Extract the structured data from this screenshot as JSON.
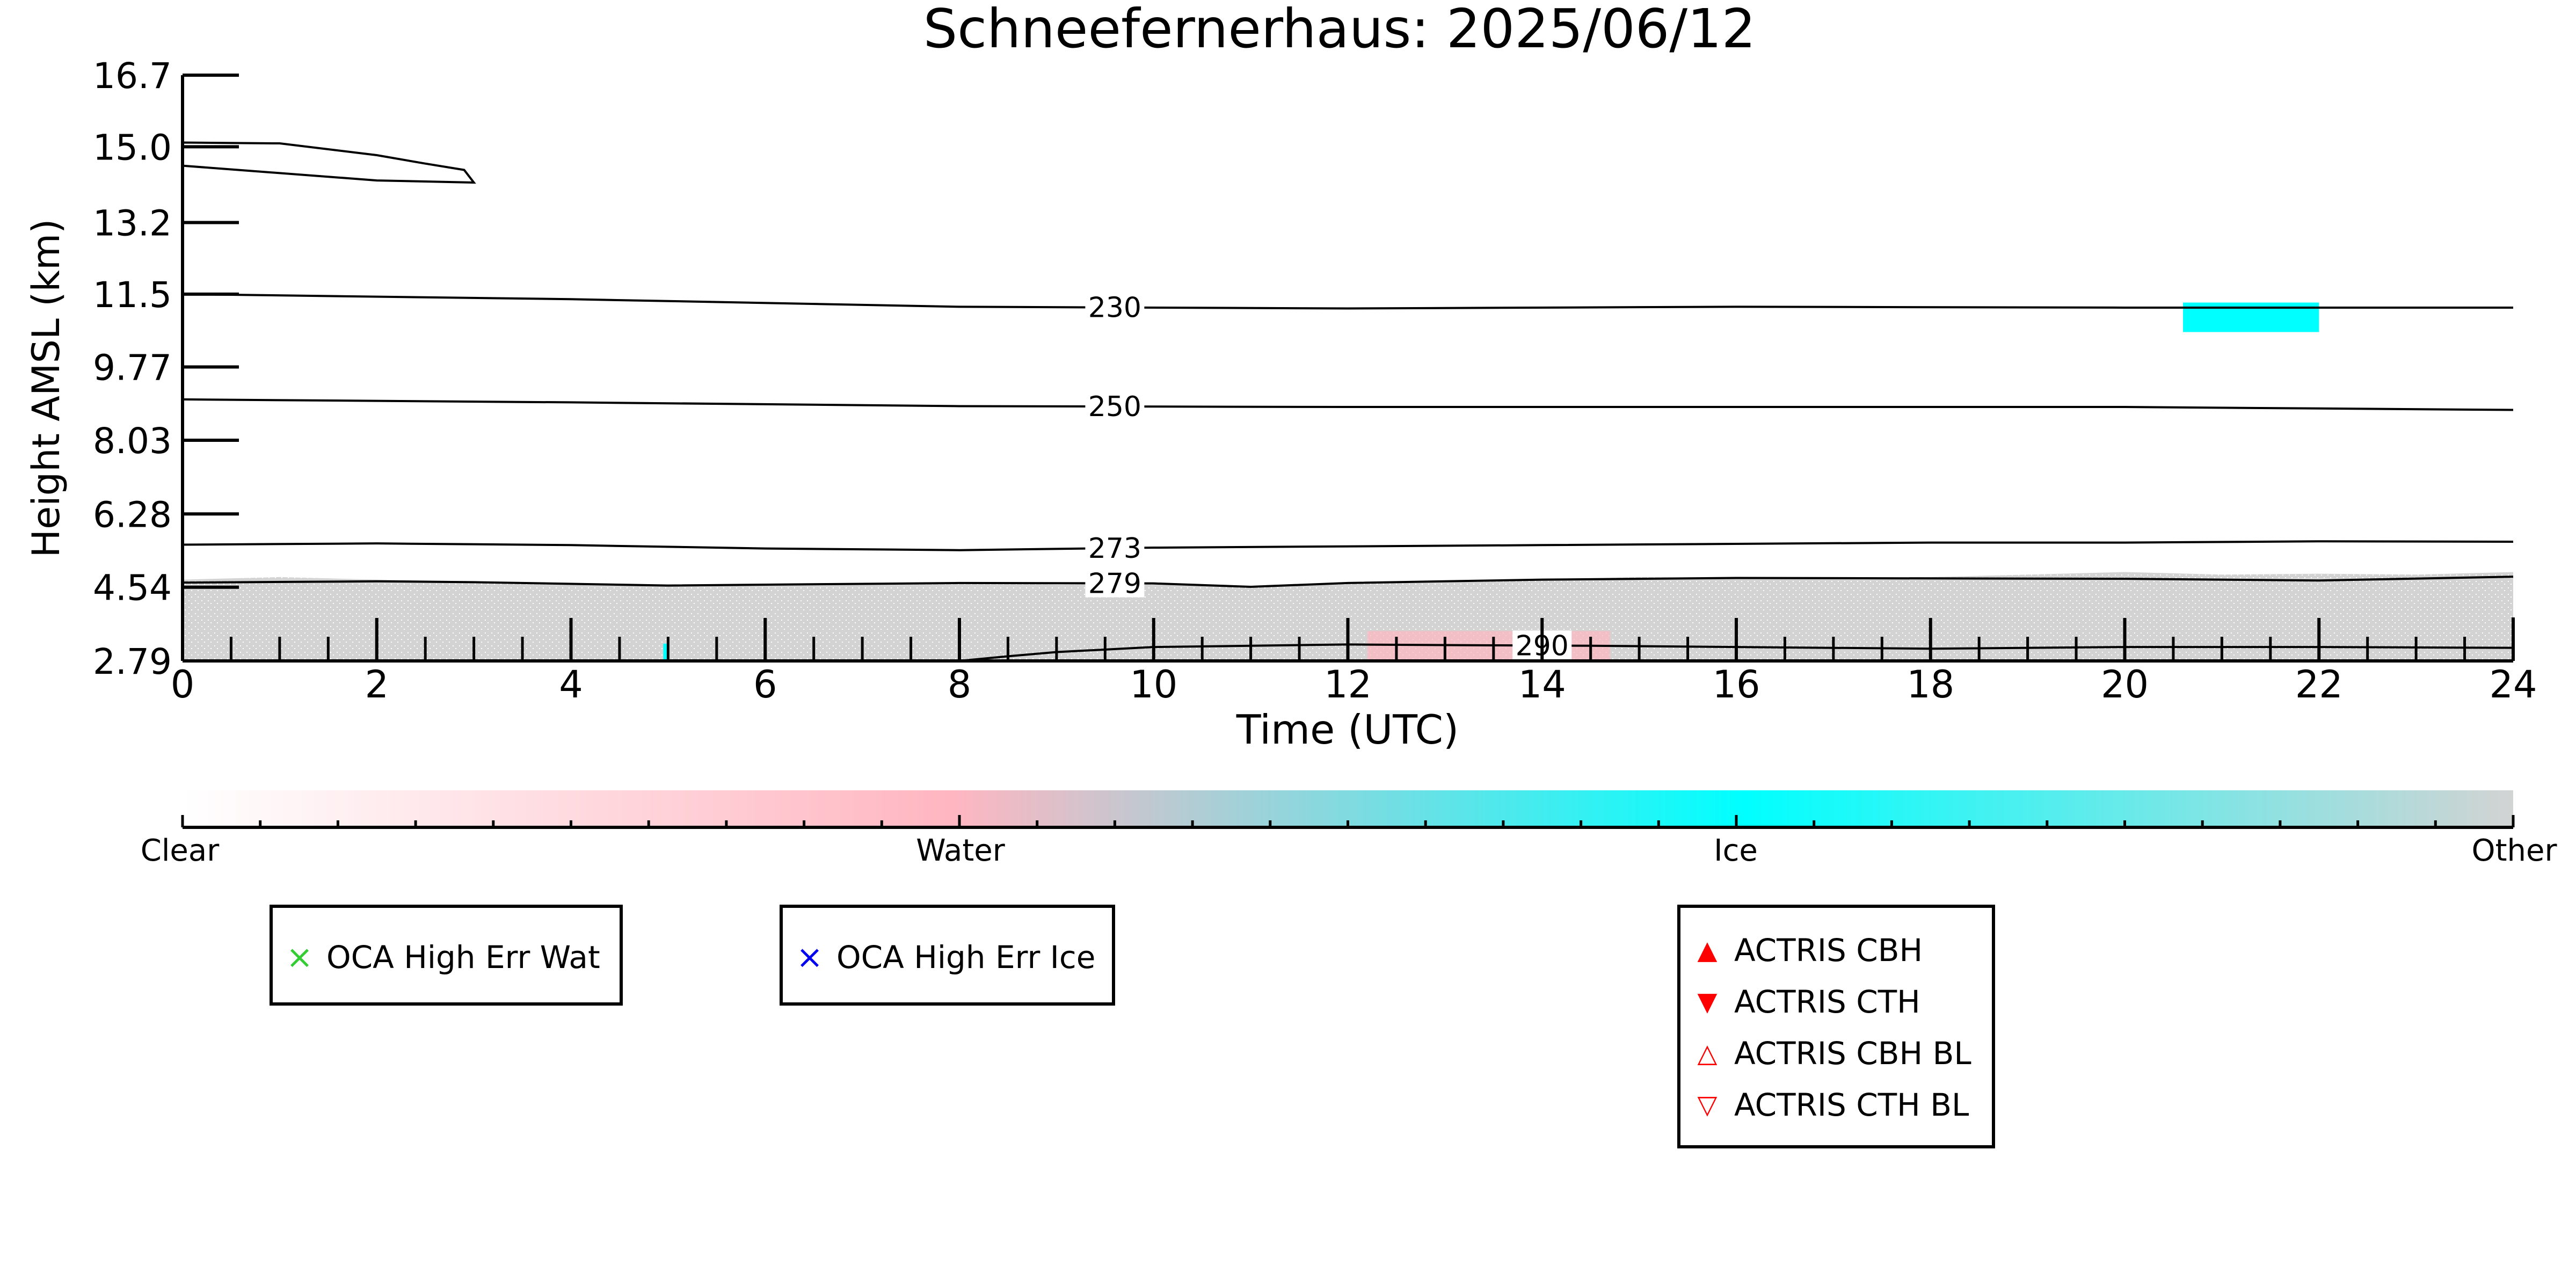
{
  "chart_data": {
    "type": "heatmap",
    "title": "Schneefernerhaus: 2025/06/12",
    "xlabel": "Time (UTC)",
    "ylabel": "Height AMSL (km)",
    "xlim": [
      0,
      24
    ],
    "ylim": [
      2.79,
      16.7
    ],
    "x_ticks": [
      "0",
      "2",
      "4",
      "6",
      "8",
      "10",
      "12",
      "14",
      "16",
      "18",
      "20",
      "22",
      "24"
    ],
    "y_ticks": [
      "2.79",
      "4.54",
      "6.28",
      "8.03",
      "9.77",
      "11.5",
      "13.2",
      "15.0",
      "16.7"
    ],
    "y_tick_values": [
      2.79,
      4.54,
      6.28,
      8.03,
      9.77,
      11.5,
      13.2,
      15.0,
      16.7
    ],
    "contours": [
      {
        "label": "230",
        "label_x": 9.6,
        "points": [
          [
            0,
            11.5
          ],
          [
            4,
            11.38
          ],
          [
            8,
            11.2
          ],
          [
            12,
            11.16
          ],
          [
            16,
            11.2
          ],
          [
            20,
            11.18
          ],
          [
            24,
            11.18
          ]
        ]
      },
      {
        "label": "250",
        "label_x": 9.6,
        "points": [
          [
            0,
            9.0
          ],
          [
            4,
            8.93
          ],
          [
            8,
            8.84
          ],
          [
            12,
            8.82
          ],
          [
            16,
            8.82
          ],
          [
            20,
            8.82
          ],
          [
            24,
            8.75
          ]
        ]
      },
      {
        "label": "273",
        "label_x": 9.6,
        "points": [
          [
            0,
            5.55
          ],
          [
            2,
            5.58
          ],
          [
            4,
            5.54
          ],
          [
            6,
            5.46
          ],
          [
            8,
            5.42
          ],
          [
            10,
            5.48
          ],
          [
            14,
            5.54
          ],
          [
            18,
            5.6
          ],
          [
            20,
            5.6
          ],
          [
            22,
            5.63
          ],
          [
            24,
            5.62
          ]
        ]
      },
      {
        "label": "279",
        "label_x": 9.6,
        "points": [
          [
            0,
            4.65
          ],
          [
            2,
            4.68
          ],
          [
            3,
            4.66
          ],
          [
            5,
            4.58
          ],
          [
            8,
            4.64
          ],
          [
            10,
            4.63
          ],
          [
            11,
            4.55
          ],
          [
            12,
            4.64
          ],
          [
            14,
            4.72
          ],
          [
            16,
            4.76
          ],
          [
            20,
            4.74
          ],
          [
            22,
            4.7
          ],
          [
            24,
            4.79
          ]
        ]
      },
      {
        "label": "290",
        "label_x": 14.0,
        "points": [
          [
            8,
            2.79
          ],
          [
            8.5,
            2.9
          ],
          [
            9,
            3.0
          ],
          [
            10,
            3.12
          ],
          [
            12,
            3.18
          ],
          [
            13.5,
            3.16
          ],
          [
            14.5,
            3.15
          ],
          [
            16,
            3.12
          ],
          [
            18,
            3.08
          ],
          [
            20,
            3.12
          ],
          [
            22,
            3.12
          ],
          [
            24,
            3.1
          ]
        ]
      },
      {
        "label": "",
        "label_x": null,
        "points": [
          [
            0,
            15.1
          ],
          [
            1,
            15.08
          ],
          [
            2,
            14.8
          ],
          [
            2.5,
            14.6
          ],
          [
            2.9,
            14.45
          ],
          [
            3.0,
            14.15
          ],
          [
            2,
            14.2
          ],
          [
            0,
            14.55
          ]
        ]
      }
    ],
    "categories_legend": [
      "Clear",
      "Water",
      "Ice",
      "Other"
    ],
    "colors": {
      "clear": "#ffffff",
      "water": "#ffb6c1",
      "ice": "#00ffff",
      "other": "#d3d3d3"
    },
    "regions": [
      {
        "class": "other",
        "x_start": 0,
        "x_end": 24,
        "description_top_km": 4.7
      },
      {
        "class": "water",
        "x_start": 12.2,
        "x_end": 14.7,
        "top_km": 3.5
      },
      {
        "class": "ice",
        "x_start": 20.6,
        "x_end": 22.0,
        "top_km": 11.3,
        "bottom_km": 10.6
      },
      {
        "class": "ice",
        "x_start": 4.95,
        "x_end": 5.0,
        "top_km": 3.2,
        "bottom_km": 2.79
      }
    ]
  },
  "legends": {
    "oca": [
      {
        "label": "OCA High Err Wat",
        "symbol": "×",
        "color": "#33cc33"
      },
      {
        "label": "OCA High Err Ice",
        "symbol": "×",
        "color": "#0000ee"
      }
    ],
    "actris": [
      {
        "label": "ACTRIS CBH",
        "symbol": "▲",
        "color": "#ff0000"
      },
      {
        "label": "ACTRIS CTH",
        "symbol": "▼",
        "color": "#ff0000"
      },
      {
        "label": "ACTRIS CBH BL",
        "symbol": "△",
        "color": "#ff0000"
      },
      {
        "label": "ACTRIS CTH BL",
        "symbol": "▽",
        "color": "#ff0000"
      }
    ]
  }
}
